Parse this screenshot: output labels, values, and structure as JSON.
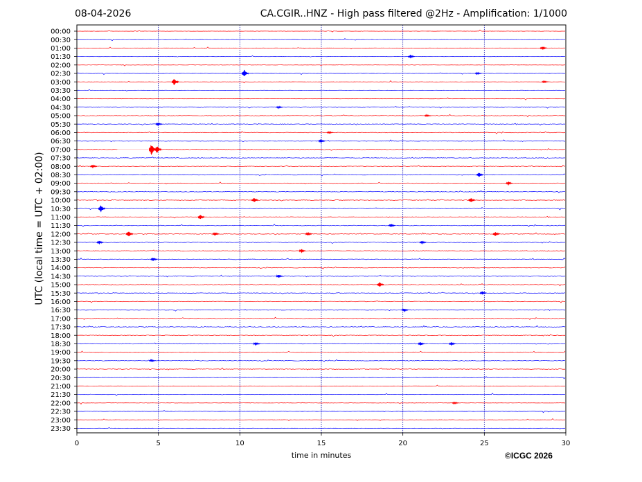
{
  "header": {
    "date": "08-04-2026",
    "title": "CA.CGIR..HNZ - High pass filtered @2Hz - Amplification: 1/1000"
  },
  "footer": {
    "copyright": "©ICGC 2026"
  },
  "colors": {
    "trace_a": "#ff0000",
    "trace_b": "#0000ff",
    "grid": "#0000aa",
    "axis": "#000000"
  },
  "chart_data": {
    "type": "line",
    "subtype": "helicorder",
    "xlabel": "time in minutes",
    "ylabel": "UTC (local time = UTC + 02:00)",
    "xlim": [
      0,
      30
    ],
    "xticks": [
      0,
      5,
      10,
      15,
      20,
      25,
      30
    ],
    "vertical_grid": [
      5,
      10,
      15,
      20,
      25
    ],
    "rows": [
      "00:00",
      "00:30",
      "01:00",
      "01:30",
      "02:00",
      "02:30",
      "03:00",
      "03:30",
      "04:00",
      "04:30",
      "05:00",
      "05:30",
      "06:00",
      "06:30",
      "07:00",
      "07:30",
      "08:00",
      "08:30",
      "09:00",
      "09:30",
      "10:00",
      "10:30",
      "11:00",
      "11:30",
      "12:00",
      "12:30",
      "13:00",
      "13:30",
      "14:00",
      "14:30",
      "15:00",
      "15:30",
      "16:00",
      "16:30",
      "17:00",
      "17:30",
      "18:00",
      "18:30",
      "19:00",
      "19:30",
      "20:00",
      "20:30",
      "21:00",
      "21:30",
      "22:00",
      "22:30",
      "23:00",
      "23:30"
    ],
    "trace_color_pattern": [
      "red",
      "blue"
    ],
    "gaps": [
      {
        "row": "07:00",
        "from_min": 2.5,
        "to_min": 4.4
      }
    ],
    "events": [
      {
        "row": "01:00",
        "minute": 28.6,
        "size": 3
      },
      {
        "row": "01:30",
        "minute": 20.5,
        "size": 3
      },
      {
        "row": "02:30",
        "minute": 10.3,
        "size": 6
      },
      {
        "row": "02:30",
        "minute": 24.6,
        "size": 2
      },
      {
        "row": "03:00",
        "minute": 6.0,
        "size": 6
      },
      {
        "row": "03:00",
        "minute": 28.7,
        "size": 2
      },
      {
        "row": "04:30",
        "minute": 12.4,
        "size": 2
      },
      {
        "row": "05:00",
        "minute": 21.5,
        "size": 2
      },
      {
        "row": "05:30",
        "minute": 5.0,
        "size": 3
      },
      {
        "row": "06:00",
        "minute": 15.5,
        "size": 2
      },
      {
        "row": "06:30",
        "minute": 15.0,
        "size": 3
      },
      {
        "row": "07:00",
        "minute": 4.6,
        "size": 9
      },
      {
        "row": "07:00",
        "minute": 4.95,
        "size": 6
      },
      {
        "row": "08:00",
        "minute": 1.0,
        "size": 3
      },
      {
        "row": "08:30",
        "minute": 24.7,
        "size": 4
      },
      {
        "row": "09:00",
        "minute": 26.5,
        "size": 3
      },
      {
        "row": "10:00",
        "minute": 10.9,
        "size": 4
      },
      {
        "row": "10:00",
        "minute": 24.2,
        "size": 4
      },
      {
        "row": "10:30",
        "minute": 1.5,
        "size": 6
      },
      {
        "row": "11:00",
        "minute": 7.6,
        "size": 4
      },
      {
        "row": "11:30",
        "minute": 19.3,
        "size": 3
      },
      {
        "row": "12:00",
        "minute": 3.2,
        "size": 5
      },
      {
        "row": "12:00",
        "minute": 8.5,
        "size": 3
      },
      {
        "row": "12:00",
        "minute": 14.2,
        "size": 3
      },
      {
        "row": "12:00",
        "minute": 25.7,
        "size": 4
      },
      {
        "row": "12:30",
        "minute": 1.4,
        "size": 3
      },
      {
        "row": "12:30",
        "minute": 21.2,
        "size": 3
      },
      {
        "row": "13:00",
        "minute": 13.8,
        "size": 3
      },
      {
        "row": "13:30",
        "minute": 4.7,
        "size": 3
      },
      {
        "row": "14:30",
        "minute": 12.4,
        "size": 3
      },
      {
        "row": "15:00",
        "minute": 18.6,
        "size": 4
      },
      {
        "row": "15:30",
        "minute": 24.9,
        "size": 3
      },
      {
        "row": "16:30",
        "minute": 20.1,
        "size": 3
      },
      {
        "row": "18:30",
        "minute": 11.0,
        "size": 3
      },
      {
        "row": "18:30",
        "minute": 21.1,
        "size": 3
      },
      {
        "row": "18:30",
        "minute": 23.0,
        "size": 3
      },
      {
        "row": "19:30",
        "minute": 4.6,
        "size": 2
      },
      {
        "row": "22:00",
        "minute": 23.2,
        "size": 2
      }
    ]
  }
}
